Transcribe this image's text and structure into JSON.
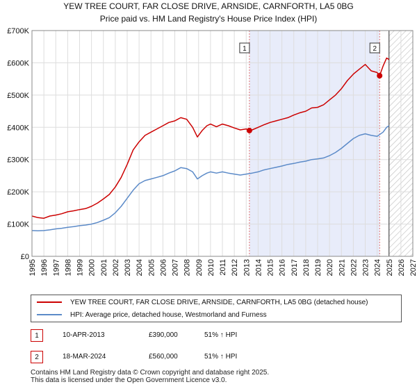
{
  "chart_data": {
    "type": "line",
    "title": "YEW TREE COURT, FAR CLOSE DRIVE, ARNSIDE, CARNFORTH, LA5 0BG",
    "subtitle": "Price paid vs. HM Land Registry's House Price Index (HPI)",
    "xlim": [
      1995,
      2027
    ],
    "ylim": [
      0,
      700000
    ],
    "x_ticks": [
      "1995",
      "1996",
      "1997",
      "1998",
      "1999",
      "2000",
      "2001",
      "2002",
      "2003",
      "2004",
      "2005",
      "2006",
      "2007",
      "2008",
      "2009",
      "2010",
      "2011",
      "2012",
      "2013",
      "2014",
      "2015",
      "2016",
      "2017",
      "2018",
      "2019",
      "2020",
      "2021",
      "2022",
      "2023",
      "2024",
      "2025",
      "2026",
      "2027"
    ],
    "y_ticks": [
      {
        "value": 0,
        "label": "£0"
      },
      {
        "value": 100000,
        "label": "£100K"
      },
      {
        "value": 200000,
        "label": "£200K"
      },
      {
        "value": 300000,
        "label": "£300K"
      },
      {
        "value": 400000,
        "label": "£400K"
      },
      {
        "value": 500000,
        "label": "£500K"
      },
      {
        "value": 600000,
        "label": "£600K"
      },
      {
        "value": 700000,
        "label": "£700K"
      }
    ],
    "grid": true,
    "shaded_region": {
      "from": 2013.27,
      "to": 2024.21
    },
    "hatched_region": {
      "from": 2025.0,
      "to": 2027
    },
    "series": [
      {
        "name": "YEW TREE COURT, FAR CLOSE DRIVE, ARNSIDE, CARNFORTH, LA5 0BG (detached house)",
        "color": "#cc0000",
        "x": [
          1995,
          1995.5,
          1996,
          1996.5,
          1997,
          1997.5,
          1998,
          1998.5,
          1999,
          1999.5,
          2000,
          2000.5,
          2001,
          2001.5,
          2002,
          2002.5,
          2003,
          2003.5,
          2004,
          2004.5,
          2005,
          2005.5,
          2006,
          2006.5,
          2007,
          2007.5,
          2008,
          2008.5,
          2008.9,
          2009.3,
          2009.7,
          2010,
          2010.5,
          2011,
          2011.5,
          2012,
          2012.5,
          2013,
          2013.27,
          2013.5,
          2014,
          2014.5,
          2015,
          2015.5,
          2016,
          2016.5,
          2017,
          2017.5,
          2018,
          2018.5,
          2019,
          2019.5,
          2020,
          2020.5,
          2021,
          2021.5,
          2022,
          2022.5,
          2023,
          2023.5,
          2024,
          2024.21,
          2024.5,
          2024.8,
          2025.0
        ],
        "y": [
          125000,
          120000,
          118000,
          125000,
          128000,
          132000,
          138000,
          141000,
          145000,
          148000,
          155000,
          165000,
          178000,
          192000,
          215000,
          245000,
          285000,
          330000,
          355000,
          375000,
          385000,
          395000,
          405000,
          415000,
          420000,
          430000,
          425000,
          400000,
          370000,
          390000,
          405000,
          410000,
          402000,
          410000,
          405000,
          398000,
          392000,
          395000,
          390000,
          392000,
          400000,
          408000,
          415000,
          420000,
          425000,
          430000,
          438000,
          445000,
          450000,
          460000,
          462000,
          470000,
          485000,
          500000,
          520000,
          545000,
          565000,
          580000,
          595000,
          575000,
          570000,
          560000,
          590000,
          615000,
          610000
        ]
      },
      {
        "name": "HPI: Average price, detached house, Westmorland and Furness",
        "color": "#5b8ac8",
        "x": [
          1995,
          1995.5,
          1996,
          1996.5,
          1997,
          1997.5,
          1998,
          1998.5,
          1999,
          1999.5,
          2000,
          2000.5,
          2001,
          2001.5,
          2002,
          2002.5,
          2003,
          2003.5,
          2004,
          2004.5,
          2005,
          2005.5,
          2006,
          2006.5,
          2007,
          2007.5,
          2008,
          2008.5,
          2008.9,
          2009.3,
          2009.7,
          2010,
          2010.5,
          2011,
          2011.5,
          2012,
          2012.5,
          2013,
          2013.5,
          2014,
          2014.5,
          2015,
          2015.5,
          2016,
          2016.5,
          2017,
          2017.5,
          2018,
          2018.5,
          2019,
          2019.5,
          2020,
          2020.5,
          2021,
          2021.5,
          2022,
          2022.5,
          2023,
          2023.5,
          2024,
          2024.5,
          2024.8,
          2025.0
        ],
        "y": [
          80000,
          79000,
          80000,
          82000,
          85000,
          87000,
          90000,
          92000,
          95000,
          97000,
          100000,
          105000,
          112000,
          120000,
          135000,
          155000,
          180000,
          205000,
          225000,
          235000,
          240000,
          245000,
          250000,
          258000,
          265000,
          275000,
          272000,
          262000,
          240000,
          250000,
          258000,
          262000,
          258000,
          262000,
          258000,
          255000,
          252000,
          255000,
          258000,
          262000,
          268000,
          272000,
          276000,
          280000,
          285000,
          288000,
          292000,
          295000,
          300000,
          302000,
          305000,
          312000,
          322000,
          335000,
          350000,
          365000,
          375000,
          380000,
          375000,
          372000,
          385000,
          400000,
          405000
        ]
      }
    ],
    "markers": [
      {
        "label": "1",
        "x": 2013.27,
        "y": 390000
      },
      {
        "label": "2",
        "x": 2024.21,
        "y": 560000
      }
    ]
  },
  "legend": {
    "property_label": "YEW TREE COURT, FAR CLOSE DRIVE, ARNSIDE, CARNFORTH, LA5 0BG (detached house)",
    "hpi_label": "HPI: Average price, detached house, Westmorland and Furness"
  },
  "annotations": [
    {
      "num": "1",
      "date": "10-APR-2013",
      "price": "£390,000",
      "hpi": "51% ↑ HPI"
    },
    {
      "num": "2",
      "date": "18-MAR-2024",
      "price": "£560,000",
      "hpi": "51% ↑ HPI"
    }
  ],
  "footer": {
    "line1": "Contains HM Land Registry data © Crown copyright and database right 2025.",
    "line2": "This data is licensed under the Open Government Licence v3.0."
  },
  "colors": {
    "property": "#cc0000",
    "hpi": "#5b8ac8",
    "shade": "#e8ecfa",
    "grid": "#dddddd"
  }
}
